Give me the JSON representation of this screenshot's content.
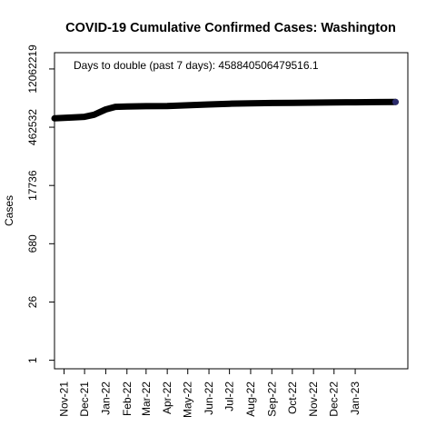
{
  "chart_data": {
    "type": "line",
    "title": "COVID-19 Cumulative Confirmed Cases: Washington",
    "xlabel": "",
    "ylabel": "Cases",
    "annotation": "Days to double (past 7 days): 458840506479516.1",
    "y_scale": "log",
    "y_ticks": [
      1,
      26,
      680,
      17736,
      462532,
      12062219
    ],
    "y_tick_labels": [
      "1",
      "26",
      "680",
      "17736",
      "462532",
      "12062219"
    ],
    "x_ticks": [
      "2021-11-01",
      "2021-12-01",
      "2022-01-01",
      "2022-02-01",
      "2022-03-01",
      "2022-04-01",
      "2022-05-01",
      "2022-06-01",
      "2022-07-01",
      "2022-08-01",
      "2022-09-01",
      "2022-10-01",
      "2022-11-01",
      "2022-12-01",
      "2023-01-01"
    ],
    "x_tick_labels": [
      "Nov-21",
      "Dec-21",
      "Jan-22",
      "Feb-22",
      "Mar-22",
      "Apr-22",
      "May-22",
      "Jun-22",
      "Jul-22",
      "Aug-22",
      "Sep-22",
      "Oct-22",
      "Nov-22",
      "Dec-22",
      "Jan-23"
    ],
    "xlim": [
      "2021-10-18",
      "2023-03-19"
    ],
    "ylim": [
      0.62,
      30000000
    ],
    "series": [
      {
        "x": [
          "2021-10-18",
          "2021-11-01",
          "2021-11-15",
          "2021-12-01",
          "2021-12-15",
          "2022-01-01",
          "2022-01-15",
          "2022-02-01",
          "2022-03-01",
          "2022-04-01",
          "2022-05-01",
          "2022-06-01",
          "2022-07-01",
          "2022-08-01",
          "2022-09-01",
          "2022-10-01",
          "2022-11-01",
          "2022-12-01",
          "2023-01-01",
          "2023-02-01",
          "2023-03-01"
        ],
        "y": [
          760000,
          780000,
          800000,
          830000,
          930000,
          1250000,
          1450000,
          1480000,
          1500000,
          1520000,
          1580000,
          1650000,
          1720000,
          1760000,
          1790000,
          1810000,
          1830000,
          1850000,
          1870000,
          1890000,
          1900000
        ]
      }
    ]
  }
}
